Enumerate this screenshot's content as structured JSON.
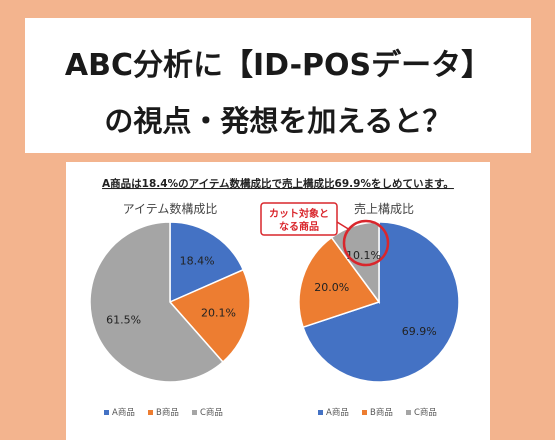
{
  "title": {
    "line1": "ABC分析に【ID-POSデータ】",
    "line2": "の視点・発想を加えると？"
  },
  "chart_data": [
    {
      "type": "pie",
      "headline": "A商品は18.4%のアイテム数構成比で売上構成比69.9%をしめています。",
      "title": "アイテム数構成比",
      "categories": [
        "A商品",
        "B商品",
        "C商品"
      ],
      "values": [
        18.4,
        20.1,
        61.5
      ],
      "labels": [
        "18.4%",
        "20.1%",
        "61.5%"
      ],
      "colors": [
        "#4472c4",
        "#ed7d31",
        "#a5a5a5"
      ],
      "legend": "bottom"
    },
    {
      "type": "pie",
      "title": "売上構成比",
      "categories": [
        "A商品",
        "B商品",
        "C商品"
      ],
      "values": [
        69.9,
        20.0,
        10.1
      ],
      "labels": [
        "69.9%",
        "20.0%",
        "10.1%"
      ],
      "colors": [
        "#4472c4",
        "#ed7d31",
        "#a5a5a5"
      ],
      "legend": "bottom",
      "annotation": {
        "line1": "カット対象と",
        "line2": "なる商品",
        "target": "C商品",
        "color": "#d9262c"
      }
    }
  ]
}
